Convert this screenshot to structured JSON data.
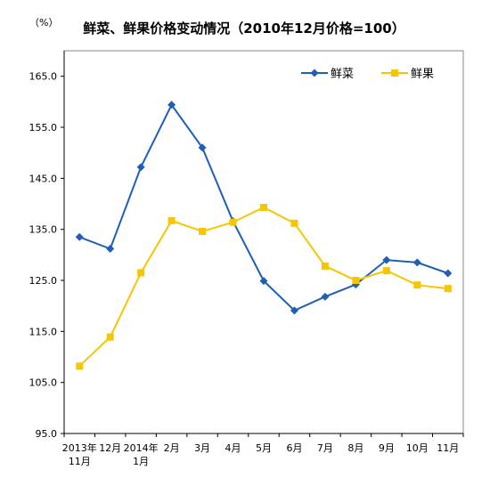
{
  "chart_data": {
    "type": "line",
    "title": "鲜菜、鲜果价格变动情况（2010年12月价格=100）",
    "unit_label": "（%）",
    "xlabel": "",
    "ylabel": "",
    "categories": [
      [
        "2013年",
        "11月"
      ],
      [
        "12月"
      ],
      [
        "2014年",
        "1月"
      ],
      [
        "2月"
      ],
      [
        "3月"
      ],
      [
        "4月"
      ],
      [
        "5月"
      ],
      [
        "6月"
      ],
      [
        "7月"
      ],
      [
        "8月"
      ],
      [
        "9月"
      ],
      [
        "10月"
      ],
      [
        "11月"
      ]
    ],
    "y_ticks": [
      "95.0",
      "105.0",
      "115.0",
      "125.0",
      "135.0",
      "145.0",
      "155.0",
      "165.0"
    ],
    "ylim": [
      95,
      170
    ],
    "grid": false,
    "legend_position": "top-right",
    "series": [
      {
        "name": "鲜菜",
        "color": "#1f5fb4",
        "marker": "diamond",
        "values": [
          133.5,
          131.2,
          147.2,
          159.4,
          151.0,
          136.6,
          124.9,
          119.1,
          121.8,
          124.2,
          129.0,
          128.5,
          126.4
        ]
      },
      {
        "name": "鲜果",
        "color": "#f7c600",
        "marker": "square",
        "values": [
          108.2,
          113.9,
          126.5,
          136.7,
          134.6,
          136.4,
          139.3,
          136.2,
          127.8,
          125.0,
          126.9,
          124.1,
          123.4
        ]
      }
    ]
  }
}
